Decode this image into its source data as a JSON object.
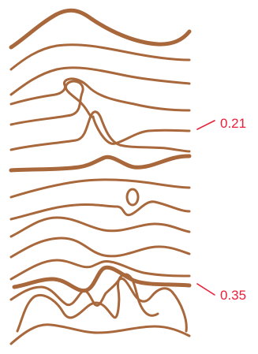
{
  "figure": {
    "colors": {
      "contour": "#a8683c",
      "annotation": "#e8203a",
      "background": "#ffffff"
    },
    "annotations": [
      {
        "label": "0.21"
      },
      {
        "label": "0.35"
      }
    ]
  }
}
